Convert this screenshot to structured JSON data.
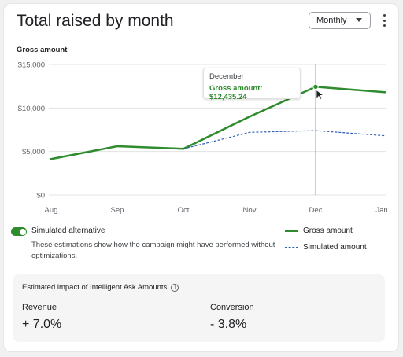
{
  "header": {
    "title": "Total raised by month",
    "period_select": "Monthly"
  },
  "chart_label": "Gross amount",
  "chart_data": {
    "type": "line",
    "x": [
      "Aug",
      "Sep",
      "Oct",
      "Nov",
      "Dec",
      "Jan"
    ],
    "yticks": [
      "$15,000",
      "$10,000",
      "$5,000",
      "$0"
    ],
    "ylim": [
      0,
      15000
    ],
    "series": [
      {
        "name": "Gross amount",
        "values": [
          4100,
          5600,
          5300,
          9000,
          12435.24,
          11800
        ],
        "color": "#2e8b2e"
      },
      {
        "name": "Simulated amount",
        "values": [
          null,
          null,
          5300,
          7200,
          7400,
          6800
        ],
        "color": "#2f5fb0"
      }
    ],
    "tooltip": {
      "month": "December",
      "text": "Gross amount: $12,435.24"
    }
  },
  "simulation": {
    "toggle_label": "Simulated alternative",
    "enabled": true,
    "description": "These estimations show how the campaign might have performed without optimizations."
  },
  "legend": {
    "gross": "Gross amount",
    "simulated": "Simulated amount"
  },
  "impact": {
    "title": "Estimated impact of Intelligent Ask Amounts",
    "revenue_label": "Revenue",
    "revenue_value": "+ 7.0%",
    "conversion_label": "Conversion",
    "conversion_value": "- 3.8%"
  }
}
